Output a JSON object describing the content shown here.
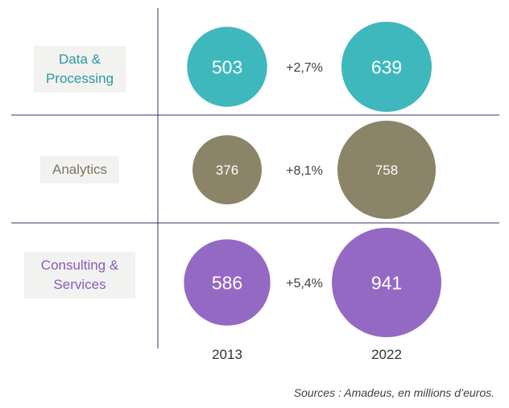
{
  "chart_data": {
    "type": "bubble",
    "categories": [
      "Data & Processing",
      "Analytics",
      "Consulting & Services"
    ],
    "years": [
      "2013",
      "2022"
    ],
    "series": [
      {
        "category": "Data & Processing",
        "values": [
          503,
          639
        ],
        "growth": "+2,7%",
        "color": "#3fb8bd",
        "label_color": "#2a9aa0"
      },
      {
        "category": "Analytics",
        "values": [
          376,
          758
        ],
        "growth": "+8,1%",
        "color": "#8b8468",
        "label_color": "#7d7661"
      },
      {
        "category": "Consulting & Services",
        "values": [
          586,
          941
        ],
        "growth": "+5,4%",
        "color": "#9469c4",
        "label_color": "#8a5cbf"
      }
    ],
    "source": "Sources : Amadeus, en millions d’euros."
  }
}
